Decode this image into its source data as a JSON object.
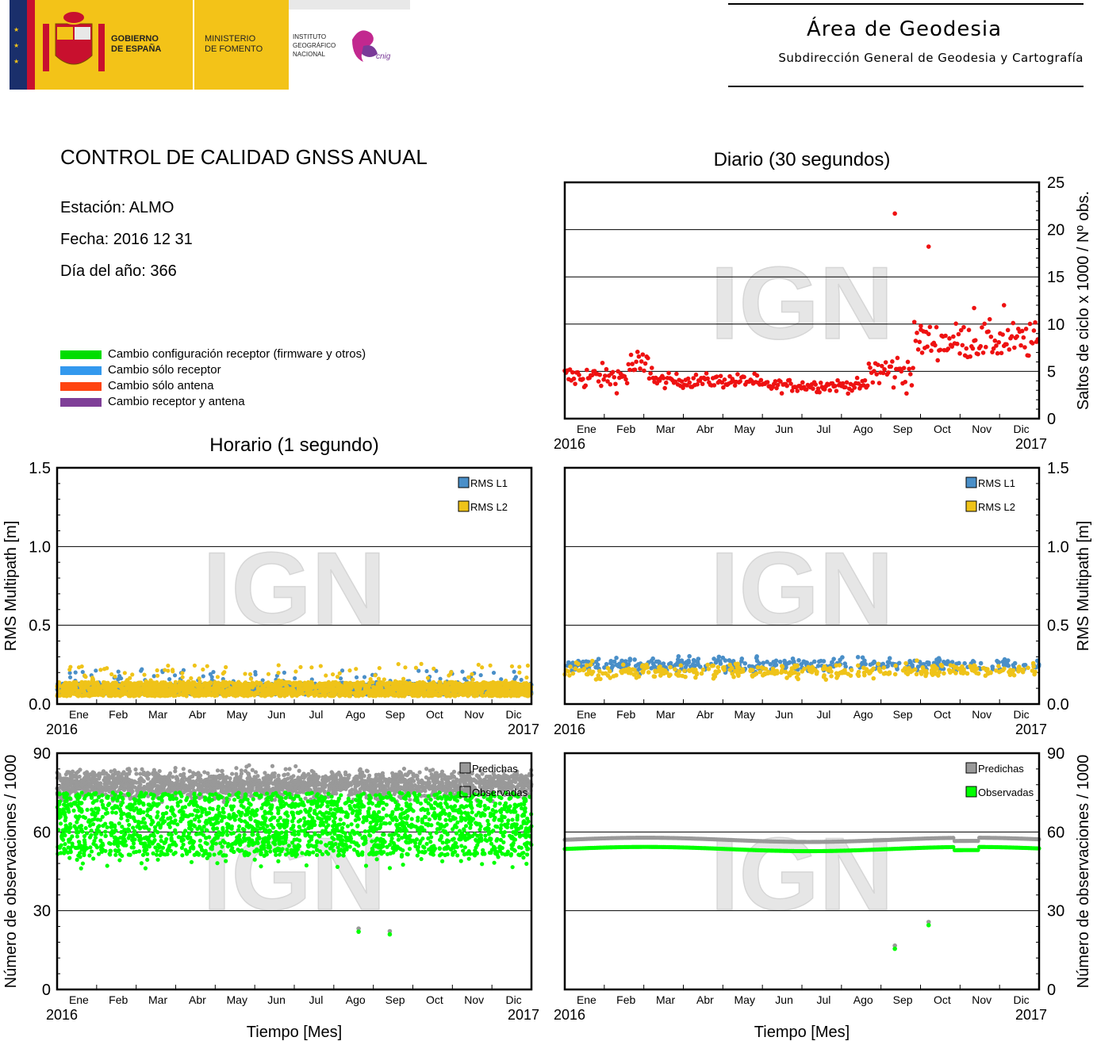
{
  "header": {
    "gobierno": [
      "GOBIERNO",
      "DE ESPAÑA"
    ],
    "ministerio": [
      "MINISTERIO",
      "DE FOMENTO"
    ],
    "instituto": [
      "INSTITUTO",
      "GEOGRÁFICO",
      "NACIONAL"
    ],
    "cnig_logo_text": "cnig",
    "area_title": "Área de Geodesia",
    "area_subtitle": "Subdirección General de Geodesia y Cartografía",
    "colors": {
      "spain_yellow": "#f3c318",
      "spain_red": "#c8102e",
      "eu_blue": "#1a2f6b"
    }
  },
  "report": {
    "title": "CONTROL DE CALIDAD GNSS ANUAL",
    "station": "Estación: ALMO",
    "date": "Fecha: 2016 12 31",
    "doy": "Día del año: 366"
  },
  "legend": [
    {
      "label": "Cambio configuración receptor (firmware y otros)",
      "color": "#00dd00"
    },
    {
      "label": "Cambio sólo receptor",
      "color": "#3399ee"
    },
    {
      "label": "Cambio sólo antena",
      "color": "#ff4411"
    },
    {
      "label": "Cambio receptor y antena",
      "color": "#7f3f98"
    }
  ],
  "section_titles": {
    "daily": "Diario (30 segundos)",
    "hourly": "Horario (1 segundo)"
  },
  "watermark": "IGN",
  "chart_data": [
    {
      "id": "cycle_slips_daily",
      "type": "scatter",
      "ylabel": "Saltos de ciclo x 1000 / Nº obs.",
      "ylim": [
        0,
        25
      ],
      "yticks": [
        "0",
        "5",
        "10",
        "15",
        "20",
        "25"
      ],
      "months": [
        "Ene",
        "Feb",
        "Mar",
        "Abr",
        "May",
        "Jun",
        "Jul",
        "Ago",
        "Sep",
        "Oct",
        "Nov",
        "Dic"
      ],
      "year_start": "2016",
      "year_end": "2017",
      "color": "#ee1111",
      "segments": [
        {
          "from": 1,
          "to": 50,
          "mean": 4.4,
          "sd": 0.9
        },
        {
          "from": 50,
          "to": 70,
          "mean": 5.5,
          "sd": 1.3
        },
        {
          "from": 70,
          "to": 150,
          "mean": 4.0,
          "sd": 0.5
        },
        {
          "from": 150,
          "to": 235,
          "mean": 3.5,
          "sd": 0.45
        },
        {
          "from": 235,
          "to": 270,
          "mean": 5.0,
          "sd": 1.4
        },
        {
          "from": 270,
          "to": 366,
          "mean": 8.2,
          "sd": 1.3
        }
      ],
      "outliers": [
        [
          255,
          21.7
        ],
        [
          281,
          18.2
        ],
        [
          275,
          9.8
        ],
        [
          339,
          12.0
        ],
        [
          316,
          11.7
        ]
      ]
    },
    {
      "id": "multipath_hourly",
      "type": "scatter",
      "ylabel": "RMS Multipath [m]",
      "ylim": [
        0,
        1.5
      ],
      "yticks": [
        "0.0",
        "0.5",
        "1.0",
        "1.5"
      ],
      "months": [
        "Ene",
        "Feb",
        "Mar",
        "Abr",
        "May",
        "Jun",
        "Jul",
        "Ago",
        "Sep",
        "Oct",
        "Nov",
        "Dic"
      ],
      "year_start": "2016",
      "year_end": "2017",
      "series": [
        {
          "name": "RMS L1",
          "color": "#4a8fc8",
          "mean": 0.06,
          "spread": 0.07
        },
        {
          "name": "RMS L2",
          "color": "#efc319",
          "mean": 0.05,
          "spread": 0.09
        }
      ]
    },
    {
      "id": "multipath_daily",
      "type": "scatter",
      "ylabel": "RMS Multipath [m]",
      "ylim": [
        0,
        1.5
      ],
      "yticks": [
        "0.0",
        "0.5",
        "1.0",
        "1.5"
      ],
      "months": [
        "Ene",
        "Feb",
        "Mar",
        "Abr",
        "May",
        "Jun",
        "Jul",
        "Ago",
        "Sep",
        "Oct",
        "Nov",
        "Dic"
      ],
      "year_start": "2016",
      "year_end": "2017",
      "series": [
        {
          "name": "RMS L1",
          "color": "#4a8fc8",
          "mean": 0.25,
          "spread": 0.03
        },
        {
          "name": "RMS L2",
          "color": "#efc319",
          "mean": 0.21,
          "spread": 0.03
        }
      ]
    },
    {
      "id": "observations_hourly",
      "type": "scatter",
      "ylabel": "Número de observaciones / 1000",
      "xlabel": "Tiempo [Mes]",
      "ylim": [
        0,
        90
      ],
      "yticks": [
        "0",
        "30",
        "60",
        "90"
      ],
      "months": [
        "Ene",
        "Feb",
        "Mar",
        "Abr",
        "May",
        "Jun",
        "Jul",
        "Ago",
        "Sep",
        "Oct",
        "Nov",
        "Dic"
      ],
      "year_start": "2016",
      "year_end": "2017",
      "series": [
        {
          "name": "Predichas",
          "color": "#999999",
          "mean": 78,
          "spread": 6
        },
        {
          "name": "Observadas",
          "color": "#00ff00",
          "mean": 63,
          "spread": 12
        }
      ],
      "outliers": [
        [
          233,
          22
        ],
        [
          257,
          21
        ]
      ]
    },
    {
      "id": "observations_daily",
      "type": "scatter",
      "ylabel": "Número de observaciones / 1000",
      "xlabel": "Tiempo [Mes]",
      "ylim": [
        0,
        90
      ],
      "yticks": [
        "0",
        "30",
        "60",
        "90"
      ],
      "months": [
        "Ene",
        "Feb",
        "Mar",
        "Abr",
        "May",
        "Jun",
        "Jul",
        "Ago",
        "Sep",
        "Oct",
        "Nov",
        "Dic"
      ],
      "year_start": "2016",
      "year_end": "2017",
      "series": [
        {
          "name": "Predichas",
          "color": "#999999",
          "mean": 57,
          "spread": 0.8
        },
        {
          "name": "Observadas",
          "color": "#00ff00",
          "mean": 53.5,
          "spread": 0.8
        }
      ],
      "outliers": [
        [
          255,
          15.5
        ],
        [
          281,
          24.5
        ]
      ]
    }
  ]
}
